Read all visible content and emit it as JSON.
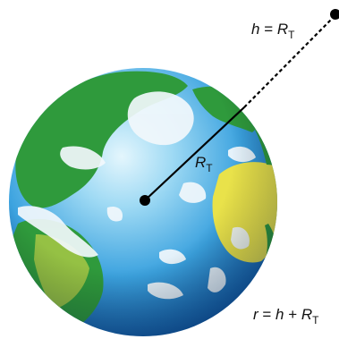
{
  "labels": {
    "altitude": {
      "lhs": "h",
      "eq": " = ",
      "var": "R",
      "sub": "T"
    },
    "radius": {
      "var": "R",
      "sub": "T"
    },
    "distance": {
      "lhs": "r",
      "eq": " = ",
      "mid": "h",
      "plus": " + ",
      "var": "R",
      "sub": "T"
    }
  },
  "colors": {
    "ocean_light": "#bfe6f6",
    "ocean_mid": "#3ba2df",
    "ocean_dark": "#0b4f9e",
    "land_green": "#2f9a3c",
    "land_yellow": "#e9e24a",
    "cloud": "#f2f8fc",
    "line": "#000000"
  }
}
